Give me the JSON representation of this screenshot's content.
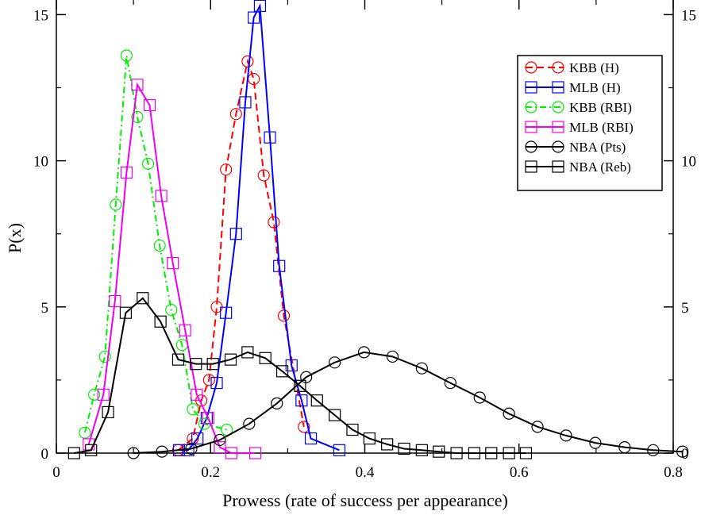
{
  "chart_data": {
    "type": "line",
    "title": "",
    "xlabel": "Prowess (rate of success per appearance)",
    "ylabel": "P(x)",
    "xlim": [
      0,
      0.8
    ],
    "ylim": [
      0,
      15.5
    ],
    "x_ticks": [
      "0",
      "0.2",
      "0.4",
      "0.6",
      "0.8"
    ],
    "x_tick_values": [
      0,
      0.2,
      0.4,
      0.6,
      0.8
    ],
    "y_ticks_left": [
      "0",
      "5",
      "10",
      "15"
    ],
    "y_ticks_right": [
      "0",
      "5",
      "10",
      "15"
    ],
    "y_tick_values": [
      0,
      5,
      10,
      15
    ],
    "grid": false,
    "legend_position": "top-right",
    "series": [
      {
        "name": "KBB (H)",
        "color": "#ff0000",
        "marker": "circle",
        "line_style": "dashed",
        "x": [
          0.158,
          0.177,
          0.188,
          0.198,
          0.208,
          0.22,
          0.233,
          0.248,
          0.256,
          0.269,
          0.282,
          0.295,
          0.321
        ],
        "y": [
          0.1,
          0.5,
          1.8,
          2.5,
          5.0,
          9.7,
          11.6,
          13.4,
          12.8,
          9.5,
          7.9,
          4.7,
          0.9
        ]
      },
      {
        "name": "MLB (H)",
        "color": "#0000ff",
        "marker": "square",
        "line_style": "solid",
        "x": [
          0.159,
          0.171,
          0.183,
          0.195,
          0.208,
          0.22,
          0.233,
          0.245,
          0.256,
          0.264,
          0.277,
          0.289,
          0.305,
          0.318,
          0.33,
          0.367
        ],
        "y": [
          0.1,
          0.1,
          0.5,
          1.2,
          2.4,
          4.8,
          7.5,
          12.0,
          14.9,
          15.3,
          10.8,
          6.4,
          3.0,
          1.8,
          0.5,
          0.1
        ]
      },
      {
        "name": "KBB (RBI)",
        "color": "#00ee00",
        "marker": "circle",
        "line_style": "dash-dot",
        "x": [
          0.037,
          0.049,
          0.063,
          0.077,
          0.091,
          0.105,
          0.119,
          0.134,
          0.149,
          0.163,
          0.177,
          0.192,
          0.221
        ],
        "y": [
          0.7,
          2.0,
          3.3,
          8.5,
          13.6,
          11.5,
          9.9,
          7.1,
          4.9,
          3.7,
          1.5,
          1.0,
          0.8
        ]
      },
      {
        "name": "MLB (RBI)",
        "color": "#ee00ee",
        "marker": "square",
        "line_style": "solid",
        "x": [
          0.042,
          0.061,
          0.076,
          0.091,
          0.105,
          0.121,
          0.136,
          0.151,
          0.167,
          0.182,
          0.197,
          0.212,
          0.227,
          0.258
        ],
        "y": [
          0.3,
          2.0,
          5.2,
          9.6,
          12.6,
          11.9,
          8.8,
          6.5,
          4.2,
          2.0,
          1.2,
          0.2,
          0.0,
          0.0
        ]
      },
      {
        "name": "NBA (Pts)",
        "color": "#000000",
        "marker": "circle",
        "line_style": "solid",
        "x": [
          0.1,
          0.137,
          0.175,
          0.212,
          0.25,
          0.286,
          0.324,
          0.361,
          0.399,
          0.436,
          0.474,
          0.511,
          0.549,
          0.587,
          0.624,
          0.661,
          0.699,
          0.737,
          0.774,
          0.812
        ],
        "y": [
          0.0,
          0.05,
          0.15,
          0.45,
          1.0,
          1.7,
          2.6,
          3.1,
          3.45,
          3.3,
          2.9,
          2.4,
          1.9,
          1.35,
          0.9,
          0.6,
          0.35,
          0.2,
          0.1,
          0.05
        ]
      },
      {
        "name": "NBA (Reb)",
        "color": "#000000",
        "marker": "square",
        "line_style": "solid",
        "x": [
          0.023,
          0.045,
          0.067,
          0.09,
          0.112,
          0.135,
          0.158,
          0.181,
          0.203,
          0.226,
          0.248,
          0.271,
          0.293,
          0.316,
          0.338,
          0.361,
          0.384,
          0.406,
          0.429,
          0.451,
          0.474,
          0.496,
          0.519,
          0.542,
          0.564,
          0.587,
          0.609
        ],
        "y": [
          0.0,
          0.1,
          1.4,
          4.8,
          5.3,
          4.5,
          3.2,
          3.05,
          3.05,
          3.2,
          3.45,
          3.25,
          2.8,
          2.3,
          1.8,
          1.3,
          0.8,
          0.5,
          0.3,
          0.15,
          0.1,
          0.05,
          0.0,
          0.0,
          0.0,
          0.0,
          0.0
        ]
      }
    ]
  }
}
